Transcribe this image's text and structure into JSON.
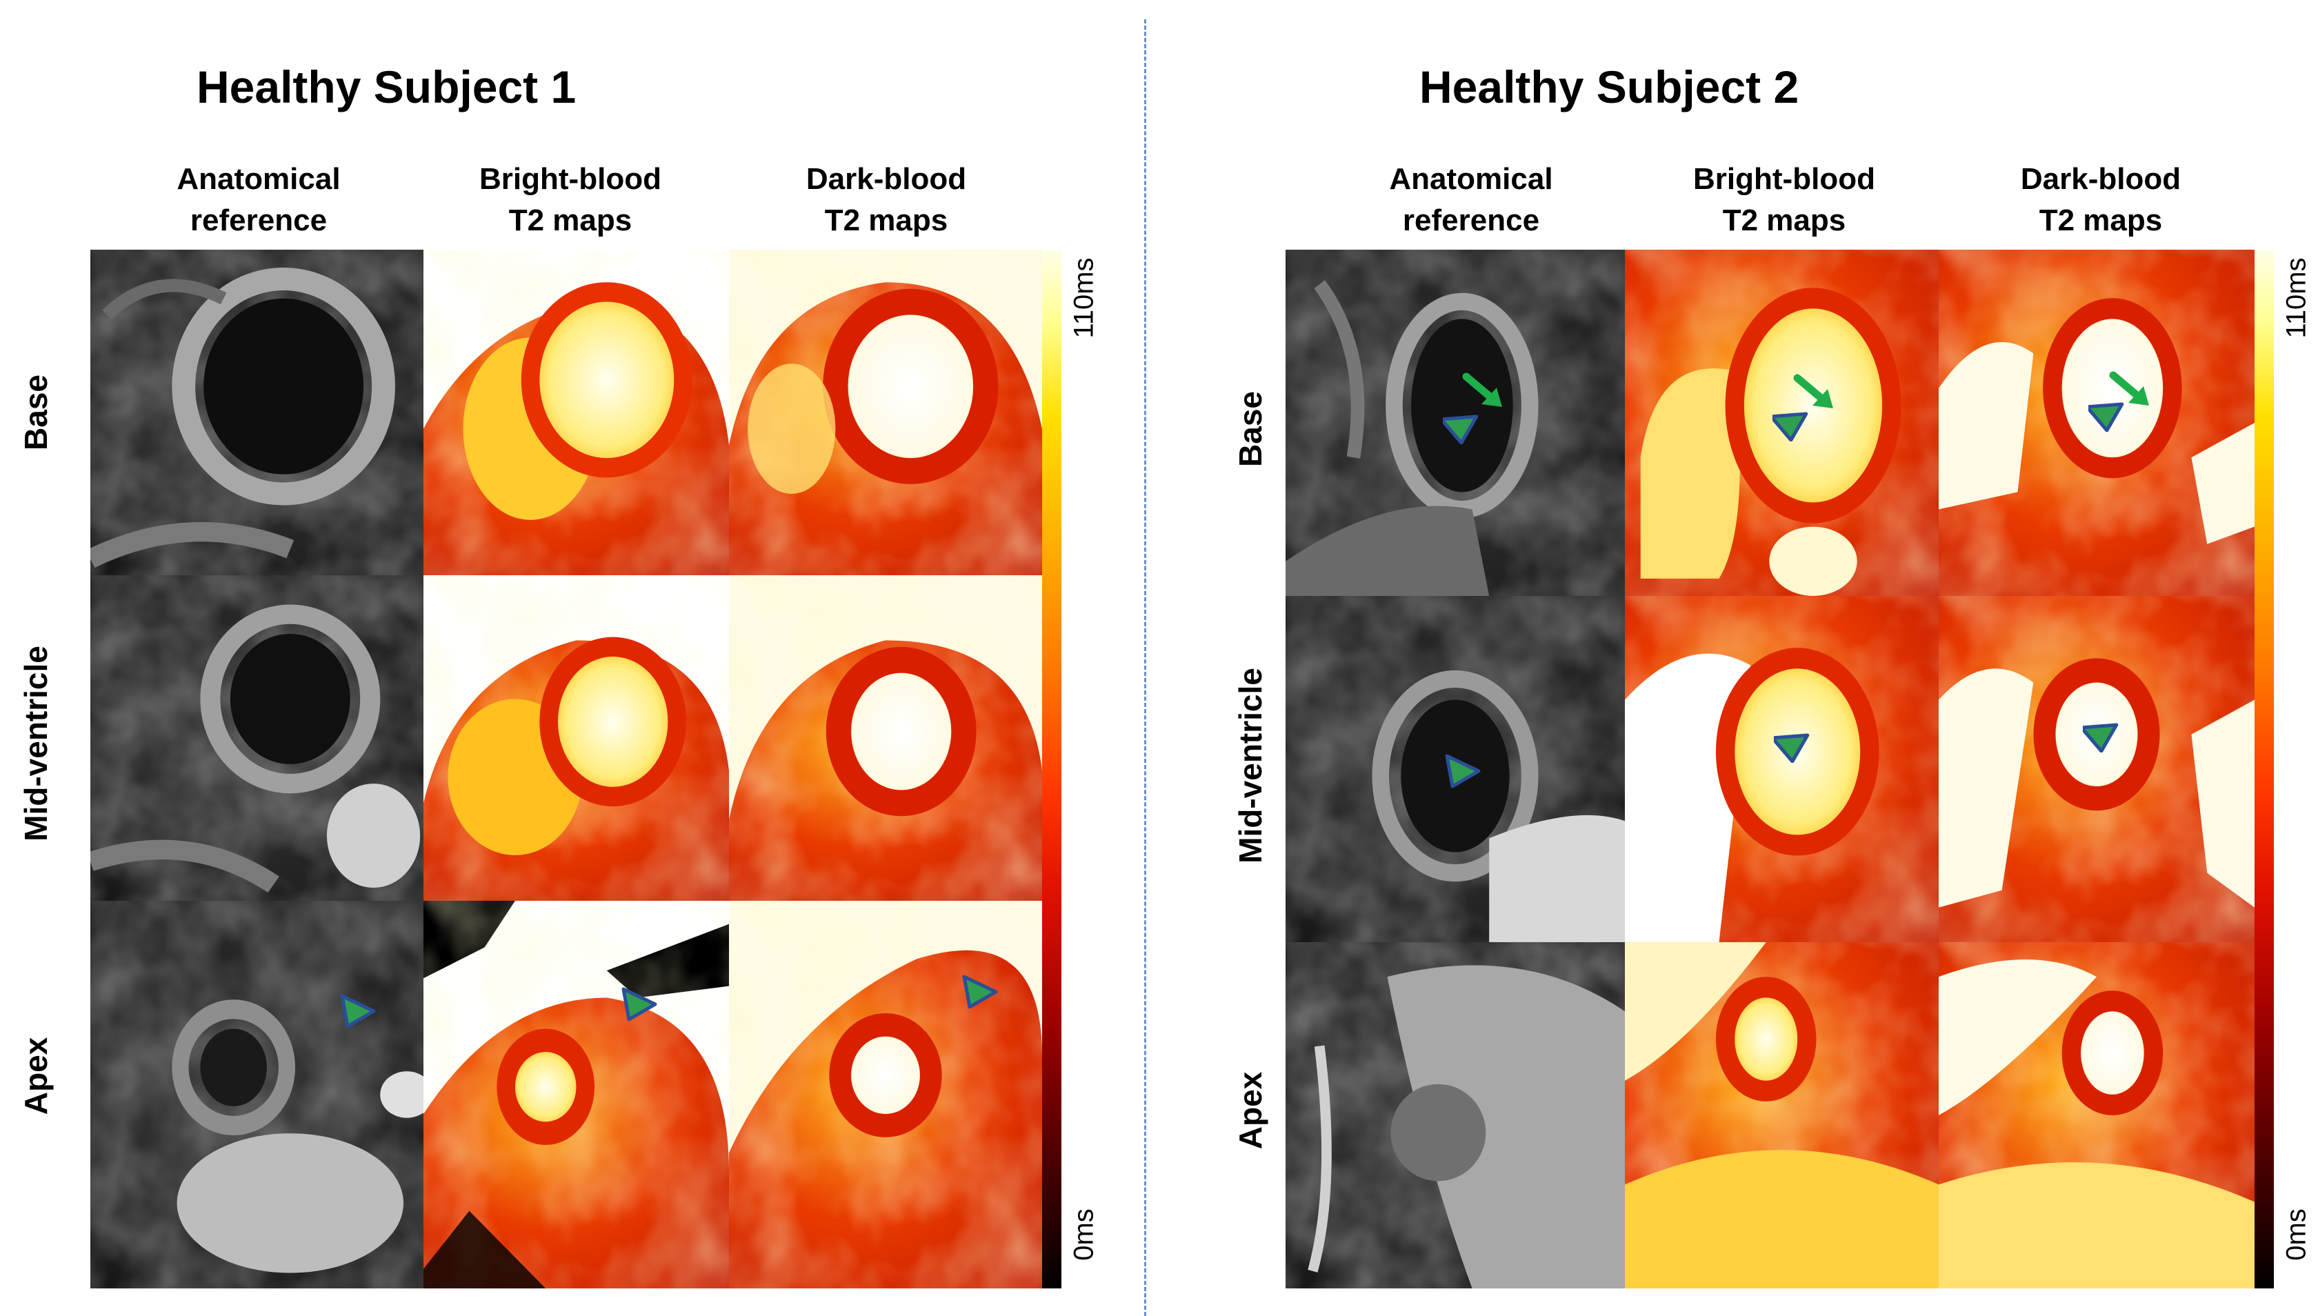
{
  "panels": [
    {
      "title": "Healthy Subject 1",
      "columns": [
        "Anatomical\nreference",
        "Bright-blood\nT2 maps",
        "Dark-blood\nT2 maps"
      ],
      "rows": [
        "Base",
        "Mid-ventricle",
        "Apex"
      ],
      "colorbar": {
        "max": "110ms",
        "min": "0ms"
      }
    },
    {
      "title": "Healthy Subject 2",
      "columns": [
        "Anatomical\nreference",
        "Bright-blood\nT2 maps",
        "Dark-blood\nT2 maps"
      ],
      "rows": [
        "Base",
        "Mid-ventricle",
        "Apex"
      ],
      "colorbar": {
        "max": "110ms",
        "min": "0ms"
      }
    }
  ],
  "colors": {
    "arrowhead_fill": "#2f9e4f",
    "arrowhead_outline": "#2a4f9a",
    "arrow": "#1fae4a",
    "divider": "#6a8fd0"
  }
}
